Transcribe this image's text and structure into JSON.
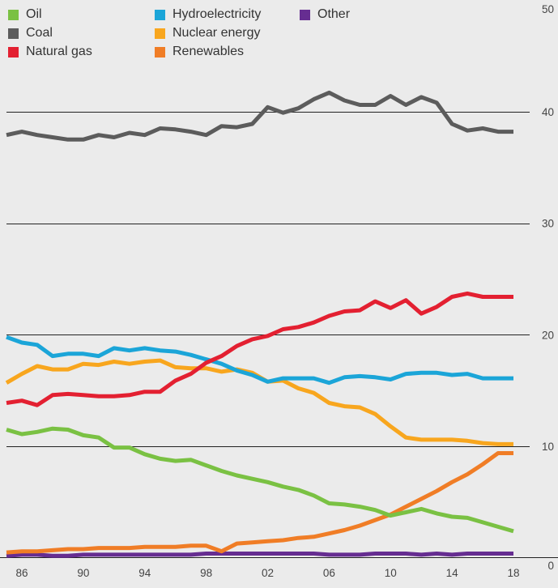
{
  "chart_data": {
    "type": "line",
    "ylim": [
      0,
      50
    ],
    "y_ticks": [
      "0",
      "10",
      "20",
      "30",
      "40",
      "50"
    ],
    "x_ticks": [
      "86",
      "90",
      "94",
      "98",
      "02",
      "06",
      "10",
      "14",
      "18"
    ],
    "x_tick_years": [
      1986,
      1990,
      1994,
      1998,
      2002,
      2006,
      2010,
      2014,
      2018
    ],
    "x": [
      1985,
      1986,
      1987,
      1988,
      1989,
      1990,
      1991,
      1992,
      1993,
      1994,
      1995,
      1996,
      1997,
      1998,
      1999,
      2000,
      2001,
      2002,
      2003,
      2004,
      2005,
      2006,
      2007,
      2008,
      2009,
      2010,
      2011,
      2012,
      2013,
      2014,
      2015,
      2016,
      2017,
      2018
    ],
    "grid": "horizontal",
    "legend_position": "top-left",
    "series": [
      {
        "name": "Oil",
        "color": "#7ac143",
        "values": [
          11.5,
          11.1,
          11.3,
          11.6,
          11.5,
          11.0,
          10.8,
          9.9,
          9.9,
          9.3,
          8.9,
          8.7,
          8.8,
          8.3,
          7.8,
          7.4,
          7.1,
          6.8,
          6.4,
          6.1,
          5.6,
          4.9,
          4.8,
          4.6,
          4.3,
          3.8,
          4.1,
          4.4,
          4.0,
          3.7,
          3.6,
          3.2,
          2.8,
          2.4
        ]
      },
      {
        "name": "Coal",
        "color": "#5c5c5c",
        "values": [
          37.9,
          38.2,
          37.9,
          37.7,
          37.5,
          37.5,
          37.9,
          37.7,
          38.1,
          37.9,
          38.5,
          38.4,
          38.2,
          37.9,
          38.7,
          38.6,
          38.9,
          40.4,
          39.9,
          40.3,
          41.1,
          41.7,
          41.0,
          40.6,
          40.6,
          41.4,
          40.6,
          41.3,
          40.8,
          38.9,
          38.3,
          38.5,
          38.2,
          38.2
        ]
      },
      {
        "name": "Natural gas",
        "color": "#e32031",
        "values": [
          13.9,
          14.1,
          13.7,
          14.6,
          14.7,
          14.6,
          14.5,
          14.5,
          14.6,
          14.9,
          14.9,
          15.9,
          16.5,
          17.5,
          18.1,
          19.0,
          19.6,
          19.9,
          20.5,
          20.7,
          21.1,
          21.7,
          22.1,
          22.2,
          23.0,
          22.4,
          23.1,
          21.9,
          22.5,
          23.4,
          23.7,
          23.4,
          23.4,
          23.4
        ]
      },
      {
        "name": "Hydroelectricity",
        "color": "#1ba5d8",
        "values": [
          19.8,
          19.3,
          19.1,
          18.1,
          18.3,
          18.3,
          18.1,
          18.8,
          18.6,
          18.8,
          18.6,
          18.5,
          18.2,
          17.8,
          17.4,
          16.8,
          16.4,
          15.8,
          16.1,
          16.1,
          16.1,
          15.7,
          16.2,
          16.3,
          16.2,
          16.0,
          16.5,
          16.6,
          16.6,
          16.4,
          16.5,
          16.1,
          16.1,
          16.1
        ]
      },
      {
        "name": "Nuclear energy",
        "color": "#f8a61e",
        "values": [
          15.7,
          16.5,
          17.2,
          16.9,
          16.9,
          17.4,
          17.3,
          17.6,
          17.4,
          17.6,
          17.7,
          17.1,
          17.0,
          17.0,
          16.7,
          16.9,
          16.6,
          15.8,
          15.9,
          15.2,
          14.8,
          13.9,
          13.6,
          13.5,
          12.9,
          11.8,
          10.8,
          10.6,
          10.6,
          10.6,
          10.5,
          10.3,
          10.2,
          10.2
        ]
      },
      {
        "name": "Renewables",
        "color": "#f07d26",
        "values": [
          0.5,
          0.6,
          0.6,
          0.7,
          0.8,
          0.8,
          0.9,
          0.9,
          0.9,
          1.0,
          1.0,
          1.0,
          1.1,
          1.1,
          0.6,
          1.3,
          1.4,
          1.5,
          1.6,
          1.8,
          1.9,
          2.2,
          2.5,
          2.9,
          3.4,
          3.9,
          4.6,
          5.3,
          6.0,
          6.8,
          7.5,
          8.4,
          9.4,
          9.4
        ]
      },
      {
        "name": "Other",
        "color": "#662d91",
        "values": [
          0.2,
          0.3,
          0.3,
          0.2,
          0.2,
          0.3,
          0.3,
          0.3,
          0.3,
          0.3,
          0.3,
          0.3,
          0.3,
          0.4,
          0.4,
          0.4,
          0.4,
          0.4,
          0.4,
          0.4,
          0.4,
          0.3,
          0.3,
          0.3,
          0.4,
          0.4,
          0.4,
          0.3,
          0.4,
          0.3,
          0.4,
          0.4,
          0.4,
          0.4
        ]
      }
    ]
  }
}
